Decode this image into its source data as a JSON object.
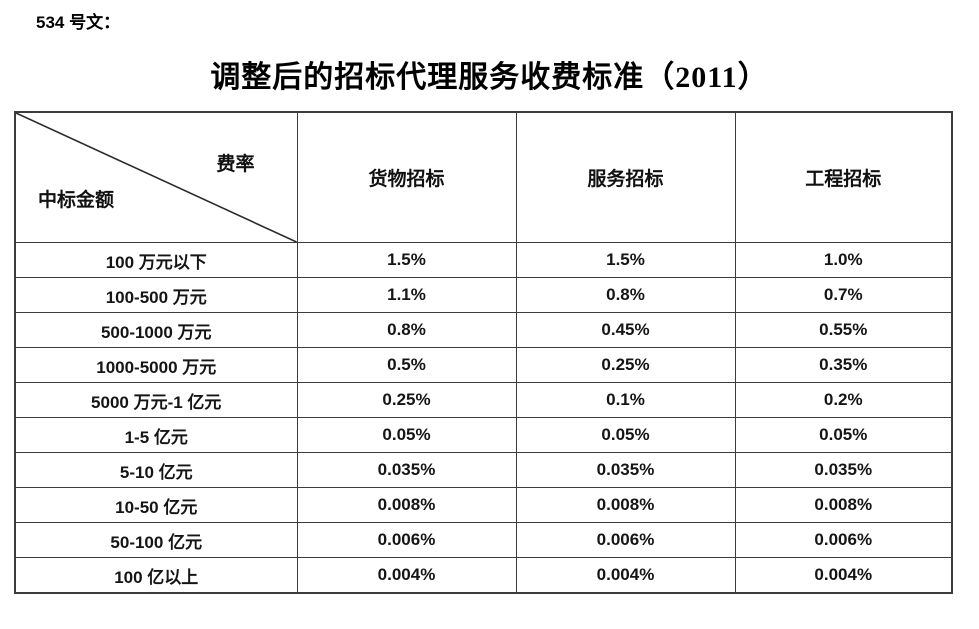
{
  "page": {
    "doc_label": "534 号文：",
    "title": "调整后的招标代理服务收费标准（2011）"
  },
  "table": {
    "corner": {
      "top_right_label": "费率",
      "bottom_left_label": "中标金额"
    },
    "columns": [
      "货物招标",
      "服务招标",
      "工程招标"
    ],
    "rows": [
      {
        "label": "100 万元以下",
        "values": [
          "1.5%",
          "1.5%",
          "1.0%"
        ]
      },
      {
        "label": "100-500 万元",
        "values": [
          "1.1%",
          "0.8%",
          "0.7%"
        ]
      },
      {
        "label": "500-1000 万元",
        "values": [
          "0.8%",
          "0.45%",
          "0.55%"
        ]
      },
      {
        "label": "1000-5000 万元",
        "values": [
          "0.5%",
          "0.25%",
          "0.35%"
        ]
      },
      {
        "label": "5000 万元-1 亿元",
        "values": [
          "0.25%",
          "0.1%",
          "0.2%"
        ]
      },
      {
        "label": "1-5 亿元",
        "values": [
          "0.05%",
          "0.05%",
          "0.05%"
        ]
      },
      {
        "label": "5-10 亿元",
        "values": [
          "0.035%",
          "0.035%",
          "0.035%"
        ]
      },
      {
        "label": "10-50 亿元",
        "values": [
          "0.008%",
          "0.008%",
          "0.008%"
        ]
      },
      {
        "label": "50-100 亿元",
        "values": [
          "0.006%",
          "0.006%",
          "0.006%"
        ]
      },
      {
        "label": "100 亿以上",
        "values": [
          "0.004%",
          "0.004%",
          "0.004%"
        ]
      }
    ],
    "colors": {
      "border": "#3c3c3c",
      "text": "#111111",
      "background": "#ffffff"
    }
  }
}
